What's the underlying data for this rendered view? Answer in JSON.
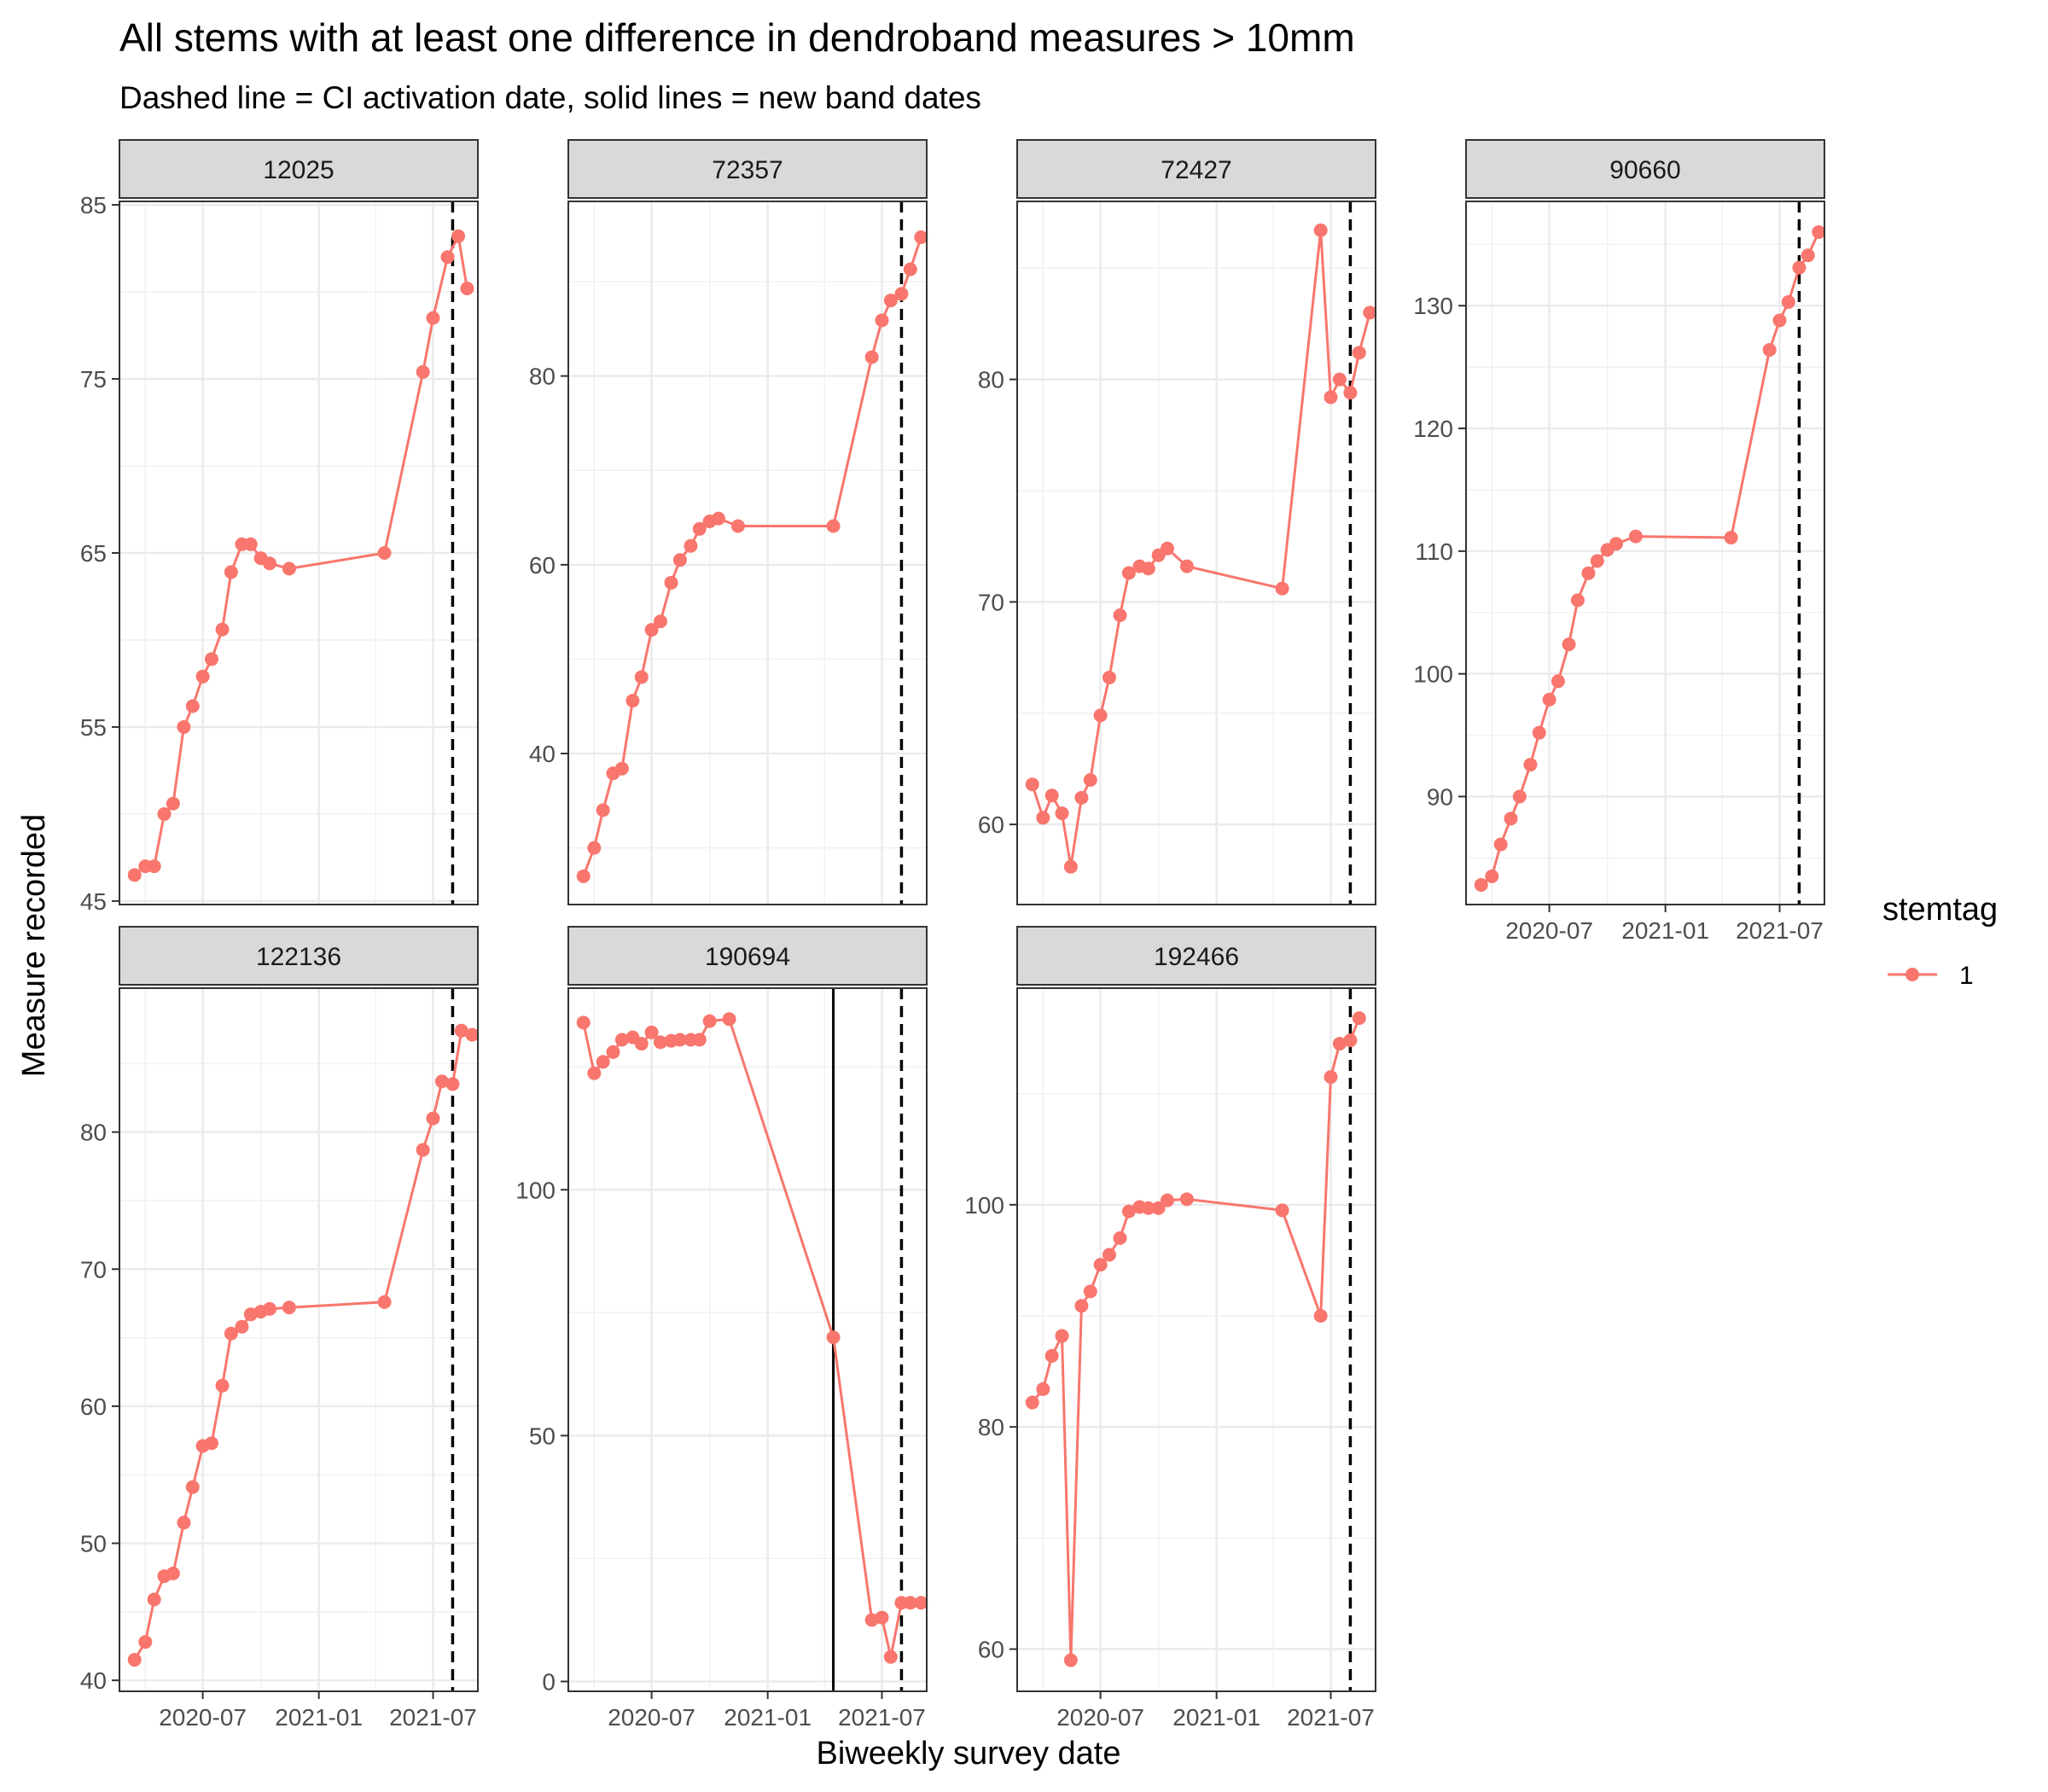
{
  "chart_data": {
    "type": "line",
    "title": "All stems with at least one difference in dendroband measures > 10mm",
    "subtitle": "Dashed line = CI activation date, solid lines = new band dates",
    "xlabel": "Biweekly survey date",
    "ylabel": "Measure recorded",
    "x_tick_labels": [
      "2020-07",
      "2021-01",
      "2021-07"
    ],
    "legend": {
      "title": "stemtag",
      "placement": "right",
      "entries": [
        {
          "label": "1",
          "color": "#F8766D"
        }
      ]
    },
    "grid": true,
    "dashed_line_date": "2021-08-01",
    "panels": [
      {
        "stem": "12025",
        "ylim": [
          44.8,
          85.2
        ],
        "yticks": [
          45,
          55,
          65,
          75,
          85
        ],
        "points": [
          [
            "2020-03-15",
            46.5
          ],
          [
            "2020-04-01",
            47.0
          ],
          [
            "2020-04-15",
            47.0
          ],
          [
            "2020-05-01",
            50.0
          ],
          [
            "2020-05-15",
            50.6
          ],
          [
            "2020-06-01",
            55.0
          ],
          [
            "2020-06-15",
            56.2
          ],
          [
            "2020-07-01",
            57.9
          ],
          [
            "2020-07-15",
            58.9
          ],
          [
            "2020-08-01",
            60.6
          ],
          [
            "2020-08-15",
            63.9
          ],
          [
            "2020-09-01",
            65.5
          ],
          [
            "2020-09-15",
            65.5
          ],
          [
            "2020-10-01",
            64.7
          ],
          [
            "2020-10-15",
            64.4
          ],
          [
            "2020-11-15",
            64.1
          ],
          [
            "2021-04-15",
            65.0
          ],
          [
            "2021-06-15",
            75.4
          ],
          [
            "2021-07-01",
            78.5
          ],
          [
            "2021-07-24",
            82.0
          ],
          [
            "2021-08-10",
            83.2
          ],
          [
            "2021-08-24",
            80.2
          ]
        ]
      },
      {
        "stem": "72357",
        "ylim": [
          24.0,
          98.5
        ],
        "yticks": [
          40,
          60,
          80
        ],
        "points": [
          [
            "2020-03-15",
            27.0
          ],
          [
            "2020-04-01",
            30.0
          ],
          [
            "2020-04-15",
            34.0
          ],
          [
            "2020-05-01",
            37.9
          ],
          [
            "2020-05-15",
            38.4
          ],
          [
            "2020-06-01",
            45.6
          ],
          [
            "2020-06-15",
            48.1
          ],
          [
            "2020-07-01",
            53.1
          ],
          [
            "2020-07-15",
            54.0
          ],
          [
            "2020-08-01",
            58.1
          ],
          [
            "2020-08-15",
            60.5
          ],
          [
            "2020-09-01",
            62.0
          ],
          [
            "2020-09-15",
            63.8
          ],
          [
            "2020-10-01",
            64.6
          ],
          [
            "2020-10-15",
            64.9
          ],
          [
            "2020-11-15",
            64.1
          ],
          [
            "2021-04-15",
            64.1
          ],
          [
            "2021-06-15",
            82.0
          ],
          [
            "2021-07-01",
            85.9
          ],
          [
            "2021-07-15",
            88.0
          ],
          [
            "2021-08-01",
            88.7
          ],
          [
            "2021-08-15",
            91.3
          ],
          [
            "2021-09-01",
            94.7
          ]
        ]
      },
      {
        "stem": "72427",
        "ylim": [
          56.4,
          88.0
        ],
        "yticks": [
          60,
          70,
          80
        ],
        "points": [
          [
            "2020-03-15",
            61.8
          ],
          [
            "2020-04-01",
            60.3
          ],
          [
            "2020-04-15",
            61.3
          ],
          [
            "2020-05-01",
            60.5
          ],
          [
            "2020-05-15",
            58.1
          ],
          [
            "2020-06-01",
            61.2
          ],
          [
            "2020-06-15",
            62.0
          ],
          [
            "2020-07-01",
            64.9
          ],
          [
            "2020-07-15",
            66.6
          ],
          [
            "2020-08-01",
            69.4
          ],
          [
            "2020-08-15",
            71.3
          ],
          [
            "2020-09-01",
            71.6
          ],
          [
            "2020-09-15",
            71.5
          ],
          [
            "2020-10-01",
            72.1
          ],
          [
            "2020-10-15",
            72.4
          ],
          [
            "2020-11-15",
            71.6
          ],
          [
            "2021-04-15",
            70.6
          ],
          [
            "2021-06-15",
            86.7
          ],
          [
            "2021-07-01",
            79.2
          ],
          [
            "2021-07-15",
            80.0
          ],
          [
            "2021-08-01",
            79.4
          ],
          [
            "2021-08-15",
            81.2
          ],
          [
            "2021-09-01",
            83.0
          ]
        ]
      },
      {
        "stem": "90660",
        "ylim": [
          81.2,
          138.5
        ],
        "yticks": [
          90,
          100,
          110,
          120,
          130
        ],
        "points": [
          [
            "2020-03-15",
            82.8
          ],
          [
            "2020-04-01",
            83.5
          ],
          [
            "2020-04-15",
            86.1
          ],
          [
            "2020-05-01",
            88.2
          ],
          [
            "2020-05-15",
            90.0
          ],
          [
            "2020-06-01",
            92.6
          ],
          [
            "2020-06-15",
            95.2
          ],
          [
            "2020-07-01",
            97.9
          ],
          [
            "2020-07-15",
            99.4
          ],
          [
            "2020-08-01",
            102.4
          ],
          [
            "2020-08-15",
            106.0
          ],
          [
            "2020-09-01",
            108.2
          ],
          [
            "2020-09-15",
            109.2
          ],
          [
            "2020-10-01",
            110.1
          ],
          [
            "2020-10-15",
            110.6
          ],
          [
            "2020-11-15",
            111.2
          ],
          [
            "2021-04-15",
            111.1
          ],
          [
            "2021-06-15",
            126.4
          ],
          [
            "2021-07-01",
            128.8
          ],
          [
            "2021-07-15",
            130.3
          ],
          [
            "2021-08-01",
            133.1
          ],
          [
            "2021-08-15",
            134.1
          ],
          [
            "2021-09-01",
            136.0
          ]
        ]
      },
      {
        "stem": "122136",
        "ylim": [
          39.2,
          90.5
        ],
        "yticks": [
          40,
          50,
          60,
          70,
          80
        ],
        "points": [
          [
            "2020-03-15",
            41.5
          ],
          [
            "2020-04-01",
            42.8
          ],
          [
            "2020-04-15",
            45.9
          ],
          [
            "2020-05-01",
            47.6
          ],
          [
            "2020-05-15",
            47.8
          ],
          [
            "2020-06-01",
            51.5
          ],
          [
            "2020-06-15",
            54.1
          ],
          [
            "2020-07-01",
            57.1
          ],
          [
            "2020-07-15",
            57.3
          ],
          [
            "2020-08-01",
            61.5
          ],
          [
            "2020-08-15",
            65.3
          ],
          [
            "2020-09-01",
            65.8
          ],
          [
            "2020-09-15",
            66.7
          ],
          [
            "2020-10-01",
            66.9
          ],
          [
            "2020-10-15",
            67.1
          ],
          [
            "2020-11-15",
            67.2
          ],
          [
            "2021-04-15",
            67.6
          ],
          [
            "2021-06-15",
            78.7
          ],
          [
            "2021-07-01",
            81.0
          ],
          [
            "2021-07-15",
            83.7
          ],
          [
            "2021-08-01",
            83.5
          ],
          [
            "2021-08-15",
            87.4
          ],
          [
            "2021-09-01",
            87.1
          ]
        ]
      },
      {
        "stem": "190694",
        "ylim": [
          -2,
          141
        ],
        "yticks": [
          0,
          50,
          100
        ],
        "solid_line_date": "2021-04-15",
        "points": [
          [
            "2020-03-15",
            134.0
          ],
          [
            "2020-04-01",
            123.7
          ],
          [
            "2020-04-15",
            126.0
          ],
          [
            "2020-05-01",
            128.0
          ],
          [
            "2020-05-15",
            130.5
          ],
          [
            "2020-06-01",
            131.0
          ],
          [
            "2020-06-15",
            129.7
          ],
          [
            "2020-07-01",
            132.0
          ],
          [
            "2020-07-15",
            130.0
          ],
          [
            "2020-08-01",
            130.3
          ],
          [
            "2020-08-15",
            130.5
          ],
          [
            "2020-09-01",
            130.5
          ],
          [
            "2020-09-15",
            130.5
          ],
          [
            "2020-10-01",
            134.3
          ],
          [
            "2020-11-01",
            134.7
          ],
          [
            "2021-04-15",
            70.0
          ],
          [
            "2021-06-15",
            12.5
          ],
          [
            "2021-07-01",
            13.0
          ],
          [
            "2021-07-15",
            5.0
          ],
          [
            "2021-08-01",
            16.0
          ],
          [
            "2021-08-15",
            16.0
          ],
          [
            "2021-09-01",
            16.0
          ]
        ]
      },
      {
        "stem": "192466",
        "ylim": [
          56.2,
          119.5
        ],
        "yticks": [
          60,
          80,
          100
        ],
        "points": [
          [
            "2020-03-15",
            82.2
          ],
          [
            "2020-04-01",
            83.4
          ],
          [
            "2020-04-15",
            86.4
          ],
          [
            "2020-05-01",
            88.2
          ],
          [
            "2020-05-15",
            59.0
          ],
          [
            "2020-06-01",
            90.9
          ],
          [
            "2020-06-15",
            92.2
          ],
          [
            "2020-07-01",
            94.6
          ],
          [
            "2020-07-15",
            95.5
          ],
          [
            "2020-08-01",
            97.0
          ],
          [
            "2020-08-15",
            99.4
          ],
          [
            "2020-09-01",
            99.8
          ],
          [
            "2020-09-15",
            99.7
          ],
          [
            "2020-10-01",
            99.7
          ],
          [
            "2020-10-15",
            100.4
          ],
          [
            "2020-11-15",
            100.5
          ],
          [
            "2021-04-15",
            99.5
          ],
          [
            "2021-06-15",
            90.0
          ],
          [
            "2021-07-01",
            111.5
          ],
          [
            "2021-07-15",
            114.5
          ],
          [
            "2021-08-01",
            114.8
          ],
          [
            "2021-08-15",
            116.8
          ]
        ]
      }
    ]
  }
}
